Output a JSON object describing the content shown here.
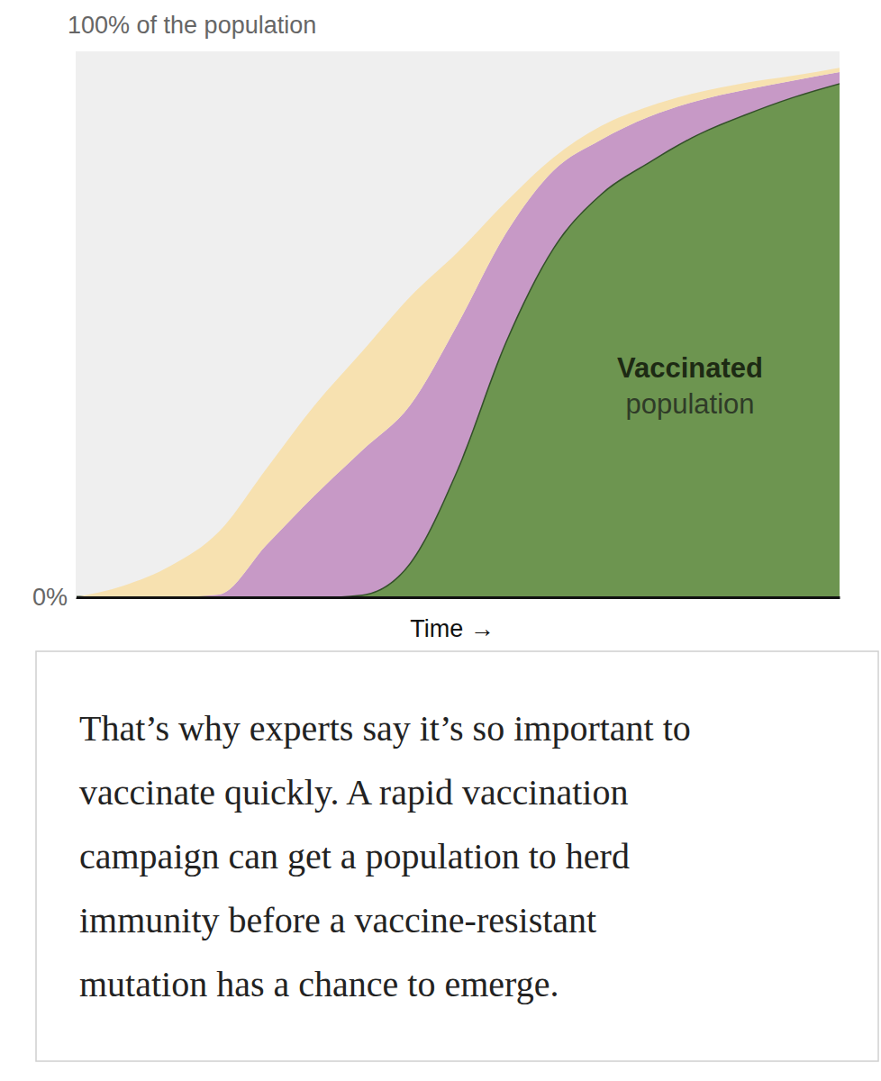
{
  "chart_data": {
    "type": "area",
    "stacked": true,
    "xlabel": "Time →",
    "x": [
      0,
      1,
      2,
      3,
      4,
      5,
      6,
      7,
      8,
      9,
      10,
      11,
      12,
      13,
      14,
      15,
      16
    ],
    "xlim": [
      0,
      16
    ],
    "xticks": [],
    "ylim": [
      0,
      100
    ],
    "yticks": [
      {
        "value": 0,
        "label": "0%"
      },
      {
        "value": 100,
        "label": "100% of the population"
      }
    ],
    "tick_labels": "y",
    "grid": false,
    "series": [
      {
        "color": "#6d9550",
        "values": [
          0,
          0,
          0,
          0,
          0,
          0,
          0.5,
          6.3,
          23.6,
          46.7,
          64.0,
          73.9,
          79.7,
          84.7,
          88.4,
          91.6,
          94.2
        ]
      },
      {
        "color": "#c799c6",
        "values": [
          0,
          0,
          0,
          0.5,
          9.6,
          18.6,
          26.4,
          28.8,
          26.4,
          19.8,
          14.1,
          9.9,
          8.3,
          6.2,
          4.5,
          3.0,
          2.0
        ]
      },
      {
        "color": "#f7e1b0",
        "values": [
          0,
          2.1,
          5.8,
          11.5,
          14.0,
          16.5,
          18.1,
          19.9,
          13.2,
          5.8,
          2.4,
          2.5,
          1.9,
          1.5,
          1.3,
          0.9,
          0.8
        ]
      }
    ],
    "annotations": [
      "Vaccinated",
      "population"
    ],
    "caption": [
      "That’s why experts say it’s so important to",
      "vaccinate quickly. A rapid vaccination",
      "campaign can get a population to herd",
      "immunity before a vaccine-resistant",
      "mutation has a chance to emerge."
    ]
  }
}
